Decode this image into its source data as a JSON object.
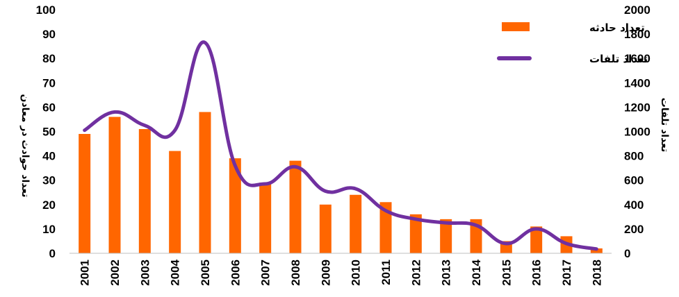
{
  "chart_data": {
    "type": "bar",
    "categories": [
      "2001",
      "2002",
      "2003",
      "2004",
      "2005",
      "2006",
      "2007",
      "2008",
      "2009",
      "2010",
      "2011",
      "2012",
      "2013",
      "2014",
      "2015",
      "2016",
      "2017",
      "2018"
    ],
    "series": [
      {
        "name": "تعداد حادثه",
        "type": "bar",
        "axis": "left",
        "color": "#FF6600",
        "values": [
          49,
          56,
          51,
          42,
          58,
          39,
          29,
          38,
          20,
          24,
          21,
          16,
          14,
          14,
          5,
          11,
          7,
          2
        ]
      },
      {
        "name": "تعداد تلفات",
        "type": "line",
        "axis": "right",
        "color": "#7030A0",
        "values": [
          1010,
          1160,
          1050,
          1010,
          1730,
          720,
          570,
          710,
          510,
          530,
          350,
          280,
          250,
          230,
          80,
          200,
          80,
          35
        ]
      }
    ],
    "ylabel_left": "تعداد حوادث در معادن",
    "ylabel_right": "تعداد تلفات",
    "ylim_left": [
      0,
      100
    ],
    "ylim_right": [
      0,
      2000
    ],
    "yticks_left": [
      "0",
      "10",
      "20",
      "30",
      "40",
      "50",
      "60",
      "70",
      "80",
      "90",
      "100"
    ],
    "yticks_right": [
      "0",
      "200",
      "400",
      "600",
      "800",
      "1000",
      "1200",
      "1400",
      "1600",
      "1800",
      "2000"
    ],
    "legend_position": "top-right",
    "grid": false
  }
}
